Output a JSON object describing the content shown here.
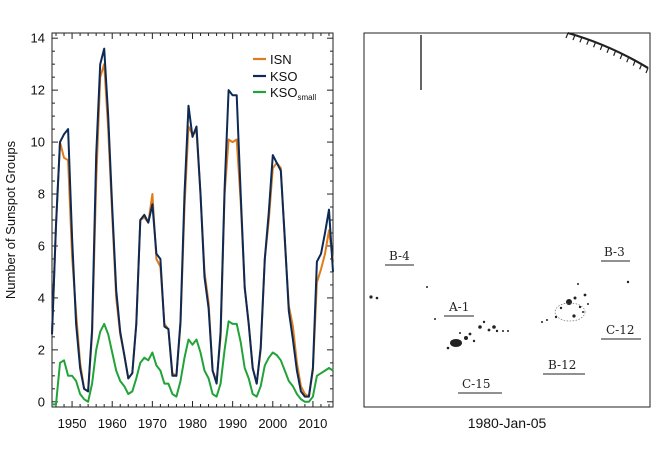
{
  "chart_data": {
    "type": "line",
    "xlabel": "",
    "ylabel": "Number of Sunspot Groups",
    "xlim": [
      1945,
      2015
    ],
    "ylim": [
      -0.2,
      14.2
    ],
    "xticks": [
      1950,
      1960,
      1970,
      1980,
      1990,
      2000,
      2010
    ],
    "yticks": [
      0,
      2,
      4,
      6,
      8,
      10,
      12,
      14
    ],
    "grid": false,
    "legend_position": "top-right",
    "colors": {
      "ISN": "#e07b1a",
      "KSO": "#0c2a55",
      "KSO_small": "#22a33a"
    },
    "series": [
      {
        "name": "ISN",
        "name_sub": "",
        "x": [
          1945,
          1946,
          1947,
          1948,
          1949,
          1950,
          1951,
          1952,
          1953,
          1954,
          1955,
          1956,
          1957,
          1958,
          1959,
          1960,
          1961,
          1962,
          1963,
          1964,
          1965,
          1966,
          1967,
          1968,
          1969,
          1970,
          1971,
          1972,
          1973,
          1974,
          1975,
          1976,
          1977,
          1978,
          1979,
          1980,
          1981,
          1982,
          1983,
          1984,
          1985,
          1986,
          1987,
          1988,
          1989,
          1990,
          1991,
          1992,
          1993,
          1994,
          1995,
          1996,
          1997,
          1998,
          1999,
          2000,
          2001,
          2002,
          2003,
          2004,
          2005,
          2006,
          2007,
          2008,
          2009,
          2010,
          2011,
          2012,
          2013,
          2014,
          2015
        ],
        "y": [
          2.6,
          6.8,
          10.0,
          9.4,
          9.3,
          5.6,
          3.4,
          1.5,
          0.5,
          0.4,
          2.6,
          8.5,
          12.5,
          13.0,
          10.5,
          7.2,
          4.0,
          2.6,
          1.8,
          0.9,
          1.1,
          3.0,
          7.0,
          7.1,
          6.9,
          8.0,
          5.5,
          5.2,
          3.0,
          2.8,
          1.1,
          1.0,
          3.0,
          7.5,
          10.6,
          10.3,
          10.4,
          8.0,
          5.0,
          3.8,
          1.2,
          0.8,
          2.5,
          8.0,
          10.1,
          10.0,
          10.1,
          7.7,
          4.4,
          3.0,
          1.3,
          0.7,
          2.0,
          5.5,
          7.0,
          9.0,
          9.2,
          9.0,
          6.2,
          3.7,
          2.9,
          1.5,
          0.6,
          0.3,
          0.2,
          1.2,
          4.6,
          5.1,
          5.7,
          6.6,
          5.4
        ]
      },
      {
        "name": "KSO",
        "name_sub": "",
        "x": [
          1945,
          1946,
          1947,
          1948,
          1949,
          1950,
          1951,
          1952,
          1953,
          1954,
          1955,
          1956,
          1957,
          1958,
          1959,
          1960,
          1961,
          1962,
          1963,
          1964,
          1965,
          1966,
          1967,
          1968,
          1969,
          1970,
          1971,
          1972,
          1973,
          1974,
          1975,
          1976,
          1977,
          1978,
          1979,
          1980,
          1981,
          1982,
          1983,
          1984,
          1985,
          1986,
          1987,
          1988,
          1989,
          1990,
          1991,
          1992,
          1993,
          1994,
          1995,
          1996,
          1997,
          1998,
          1999,
          2000,
          2001,
          2002,
          2003,
          2004,
          2005,
          2006,
          2007,
          2008,
          2009,
          2010,
          2011,
          2012,
          2013,
          2014,
          2015
        ],
        "y": [
          2.6,
          6.8,
          10.0,
          10.3,
          10.5,
          6.3,
          3.0,
          1.3,
          0.5,
          0.4,
          2.8,
          9.5,
          13.0,
          13.6,
          11.0,
          7.5,
          4.3,
          2.7,
          1.8,
          0.9,
          1.1,
          3.0,
          7.0,
          7.2,
          6.9,
          7.6,
          5.7,
          5.5,
          2.9,
          2.8,
          1.0,
          1.0,
          3.1,
          8.0,
          11.4,
          10.2,
          10.6,
          8.0,
          4.8,
          3.6,
          1.2,
          0.7,
          2.7,
          8.2,
          12.0,
          11.8,
          11.8,
          8.0,
          4.4,
          3.0,
          1.3,
          0.7,
          2.1,
          5.5,
          7.3,
          9.5,
          9.2,
          8.9,
          6.3,
          3.5,
          2.4,
          1.2,
          0.4,
          0.2,
          0.2,
          1.3,
          5.4,
          5.7,
          6.5,
          7.4,
          5.0
        ]
      },
      {
        "name": "KSO",
        "name_sub": "small",
        "x": [
          1945,
          1946,
          1947,
          1948,
          1949,
          1950,
          1951,
          1952,
          1953,
          1954,
          1955,
          1956,
          1957,
          1958,
          1959,
          1960,
          1961,
          1962,
          1963,
          1964,
          1965,
          1966,
          1967,
          1968,
          1969,
          1970,
          1971,
          1972,
          1973,
          1974,
          1975,
          1976,
          1977,
          1978,
          1979,
          1980,
          1981,
          1982,
          1983,
          1984,
          1985,
          1986,
          1987,
          1988,
          1989,
          1990,
          1991,
          1992,
          1993,
          1994,
          1995,
          1996,
          1997,
          1998,
          1999,
          2000,
          2001,
          2002,
          2003,
          2004,
          2005,
          2006,
          2007,
          2008,
          2009,
          2010,
          2011,
          2012,
          2013,
          2014,
          2015
        ],
        "y": [
          -0.1,
          -0.1,
          1.5,
          1.6,
          1.0,
          1.0,
          0.8,
          0.3,
          0.1,
          0.0,
          0.7,
          2.0,
          2.7,
          3.0,
          2.6,
          1.9,
          1.2,
          0.8,
          0.6,
          0.3,
          0.4,
          0.9,
          1.5,
          1.7,
          1.6,
          1.9,
          1.4,
          1.2,
          0.7,
          0.7,
          0.3,
          0.2,
          0.8,
          1.7,
          2.4,
          2.2,
          2.4,
          1.9,
          1.2,
          0.9,
          0.3,
          0.2,
          0.7,
          2.0,
          3.1,
          3.0,
          3.0,
          2.3,
          1.3,
          0.9,
          0.3,
          0.2,
          0.6,
          1.4,
          1.7,
          1.9,
          1.8,
          1.6,
          1.2,
          0.8,
          0.6,
          0.3,
          0.1,
          0.0,
          0.0,
          0.2,
          1.0,
          1.1,
          1.2,
          1.3,
          1.2
        ]
      }
    ]
  },
  "right_panel": {
    "caption": "1980-Jan-05",
    "labels": [
      "B-4",
      "B-3",
      "A-1",
      "C-12",
      "B-12",
      "C-15"
    ]
  }
}
